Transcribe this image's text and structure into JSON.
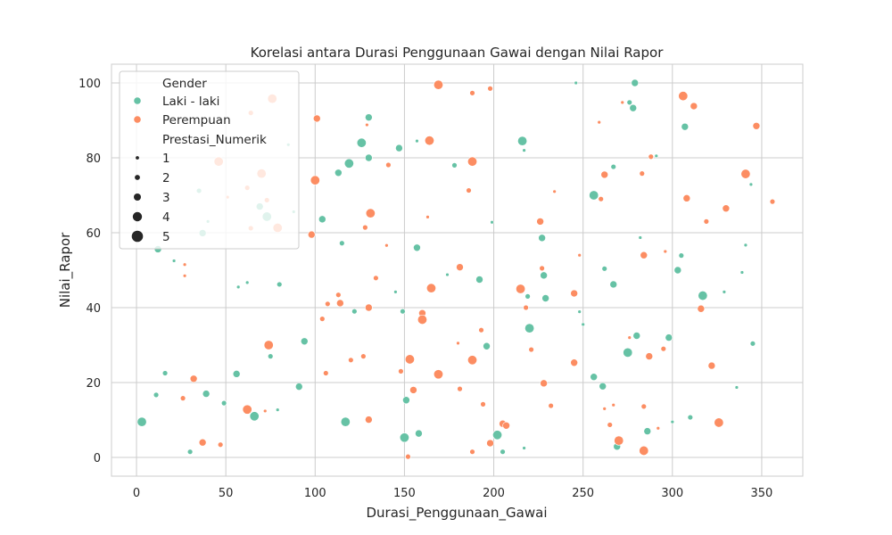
{
  "chart_data": {
    "type": "scatter",
    "title": "Korelasi antara Durasi Penggunaan Gawai dengan Nilai Rapor",
    "xlabel": "Durasi_Penggunaan_Gawai",
    "ylabel": "Nilai_Rapor",
    "xlim": [
      -14,
      373
    ],
    "ylim": [
      -5,
      105
    ],
    "xticks": [
      "0",
      "50",
      "100",
      "150",
      "200",
      "250",
      "300",
      "350"
    ],
    "yticks": [
      "0",
      "20",
      "40",
      "60",
      "80",
      "100"
    ],
    "grid": true,
    "legend_position": "top-left",
    "hue_title": "Gender",
    "size_title": "Prestasi_Numerik",
    "size_levels": [
      "1",
      "2",
      "3",
      "4",
      "5"
    ],
    "series": [
      {
        "name": "Laki - laki",
        "color": "#66c2a5",
        "points": [
          [
            3,
            9.5,
            4
          ],
          [
            11,
            16.7,
            2
          ],
          [
            12,
            55.6,
            3
          ],
          [
            16,
            22.5,
            2
          ],
          [
            21,
            52.5,
            1
          ],
          [
            30,
            1.5,
            2
          ],
          [
            35,
            71.2,
            2
          ],
          [
            37,
            59.9,
            3
          ],
          [
            39,
            17.0,
            3
          ],
          [
            40,
            63.0,
            1
          ],
          [
            49,
            14.5,
            2
          ],
          [
            56,
            22.3,
            3
          ],
          [
            57,
            45.5,
            1
          ],
          [
            62,
            46.7,
            1
          ],
          [
            66,
            11.0,
            4
          ],
          [
            69,
            67.0,
            3
          ],
          [
            73,
            64.3,
            4
          ],
          [
            75,
            27.0,
            2
          ],
          [
            79,
            12.7,
            1
          ],
          [
            80,
            46.2,
            2
          ],
          [
            85,
            83.5,
            1
          ],
          [
            88,
            65.6,
            1
          ],
          [
            91,
            18.9,
            3
          ],
          [
            94,
            31.0,
            3
          ],
          [
            104,
            63.6,
            3
          ],
          [
            113,
            76.0,
            3
          ],
          [
            115,
            57.2,
            2
          ],
          [
            117,
            9.5,
            4
          ],
          [
            119,
            78.5,
            4
          ],
          [
            122,
            39.0,
            2
          ],
          [
            126,
            84.0,
            4
          ],
          [
            130,
            80.0,
            3
          ],
          [
            130,
            90.8,
            3
          ],
          [
            145,
            44.2,
            1
          ],
          [
            147,
            82.6,
            3
          ],
          [
            149,
            39.0,
            2
          ],
          [
            150,
            5.3,
            4
          ],
          [
            151,
            15.3,
            3
          ],
          [
            157,
            84.5,
            1
          ],
          [
            157,
            56.0,
            3
          ],
          [
            158,
            6.4,
            3
          ],
          [
            174,
            48.8,
            1
          ],
          [
            178,
            78.0,
            2
          ],
          [
            192,
            47.5,
            3
          ],
          [
            196,
            29.7,
            3
          ],
          [
            199,
            62.8,
            1
          ],
          [
            202,
            6.0,
            4
          ],
          [
            205,
            1.5,
            2
          ],
          [
            216,
            84.5,
            4
          ],
          [
            217,
            2.5,
            1
          ],
          [
            217,
            82.0,
            1
          ],
          [
            219,
            43.0,
            2
          ],
          [
            220,
            34.5,
            4
          ],
          [
            227,
            58.6,
            3
          ],
          [
            228,
            48.6,
            3
          ],
          [
            229,
            42.5,
            3
          ],
          [
            246,
            100.0,
            1
          ],
          [
            248,
            38.9,
            1
          ],
          [
            250,
            35.5,
            1
          ],
          [
            256,
            70.0,
            4
          ],
          [
            256,
            21.5,
            3
          ],
          [
            261,
            19.0,
            3
          ],
          [
            262,
            50.4,
            2
          ],
          [
            267,
            77.6,
            2
          ],
          [
            267,
            46.2,
            3
          ],
          [
            269,
            2.9,
            3
          ],
          [
            275,
            28.0,
            4
          ],
          [
            276,
            94.8,
            2
          ],
          [
            278,
            93.3,
            3
          ],
          [
            279,
            100.0,
            3
          ],
          [
            280,
            32.5,
            3
          ],
          [
            282,
            58.7,
            1
          ],
          [
            286,
            7.0,
            3
          ],
          [
            291,
            80.5,
            1
          ],
          [
            298,
            32.0,
            3
          ],
          [
            300,
            9.5,
            1
          ],
          [
            303,
            50.0,
            3
          ],
          [
            305,
            53.9,
            2
          ],
          [
            307,
            88.3,
            3
          ],
          [
            310,
            10.7,
            2
          ],
          [
            317,
            43.2,
            4
          ],
          [
            329,
            44.2,
            1
          ],
          [
            336,
            18.7,
            1
          ],
          [
            339,
            49.4,
            1
          ],
          [
            341,
            56.7,
            1
          ],
          [
            344,
            72.9,
            1
          ],
          [
            345,
            30.4,
            2
          ]
        ]
      },
      {
        "name": "Perempuan",
        "color": "#fc8d62",
        "points": [
          [
            26,
            15.8,
            2
          ],
          [
            27,
            51.5,
            1
          ],
          [
            27,
            48.5,
            1
          ],
          [
            32,
            21.0,
            3
          ],
          [
            37,
            4.0,
            3
          ],
          [
            46,
            79.0,
            4
          ],
          [
            47,
            3.4,
            2
          ],
          [
            51,
            69.5,
            1
          ],
          [
            62,
            72.0,
            2
          ],
          [
            62,
            12.8,
            4
          ],
          [
            64,
            92.0,
            2
          ],
          [
            64,
            61.2,
            2
          ],
          [
            70,
            75.8,
            4
          ],
          [
            72,
            12.4,
            1
          ],
          [
            73,
            68.7,
            2
          ],
          [
            74,
            30.0,
            4
          ],
          [
            76,
            95.8,
            4
          ],
          [
            79,
            61.3,
            4
          ],
          [
            98,
            59.5,
            3
          ],
          [
            100,
            74.0,
            4
          ],
          [
            101,
            90.5,
            3
          ],
          [
            104,
            37.0,
            2
          ],
          [
            106,
            22.5,
            2
          ],
          [
            107,
            41.0,
            2
          ],
          [
            113,
            43.4,
            2
          ],
          [
            114,
            41.2,
            3
          ],
          [
            120,
            26.0,
            2
          ],
          [
            127,
            27.0,
            2
          ],
          [
            128,
            61.4,
            2
          ],
          [
            129,
            88.8,
            1
          ],
          [
            130,
            10.1,
            3
          ],
          [
            130,
            40.0,
            3
          ],
          [
            131,
            65.2,
            4
          ],
          [
            134,
            47.9,
            2
          ],
          [
            140,
            56.6,
            1
          ],
          [
            141,
            78.1,
            2
          ],
          [
            148,
            23.0,
            2
          ],
          [
            152,
            0.2,
            2
          ],
          [
            153,
            26.2,
            4
          ],
          [
            155,
            18.0,
            3
          ],
          [
            160,
            38.5,
            3
          ],
          [
            160,
            36.8,
            4
          ],
          [
            163,
            64.2,
            1
          ],
          [
            164,
            84.6,
            4
          ],
          [
            165,
            45.2,
            4
          ],
          [
            169,
            22.2,
            4
          ],
          [
            169,
            99.5,
            4
          ],
          [
            180,
            30.5,
            1
          ],
          [
            181,
            18.3,
            2
          ],
          [
            181,
            50.8,
            3
          ],
          [
            186,
            71.3,
            2
          ],
          [
            188,
            79.0,
            4
          ],
          [
            188,
            26.0,
            4
          ],
          [
            188,
            1.5,
            2
          ],
          [
            188,
            97.3,
            2
          ],
          [
            193,
            34.0,
            2
          ],
          [
            194,
            14.2,
            2
          ],
          [
            198,
            98.5,
            2
          ],
          [
            198,
            3.8,
            3
          ],
          [
            205,
            9.0,
            3
          ],
          [
            207,
            8.5,
            3
          ],
          [
            215,
            45.0,
            4
          ],
          [
            218,
            40.0,
            2
          ],
          [
            221,
            28.8,
            2
          ],
          [
            226,
            63.0,
            3
          ],
          [
            227,
            50.5,
            2
          ],
          [
            228,
            19.8,
            3
          ],
          [
            232,
            13.8,
            2
          ],
          [
            234,
            71.0,
            1
          ],
          [
            245,
            25.3,
            3
          ],
          [
            245,
            43.8,
            3
          ],
          [
            248,
            54.0,
            1
          ],
          [
            259,
            89.5,
            1
          ],
          [
            260,
            69.0,
            2
          ],
          [
            262,
            75.5,
            3
          ],
          [
            262,
            13.0,
            1
          ],
          [
            265,
            8.7,
            2
          ],
          [
            267,
            14.0,
            1
          ],
          [
            270,
            4.5,
            4
          ],
          [
            272,
            94.8,
            1
          ],
          [
            276,
            32.0,
            1
          ],
          [
            283,
            75.8,
            2
          ],
          [
            284,
            1.8,
            4
          ],
          [
            284,
            13.6,
            2
          ],
          [
            284,
            54.0,
            3
          ],
          [
            287,
            27.0,
            3
          ],
          [
            288,
            80.3,
            2
          ],
          [
            292,
            7.8,
            1
          ],
          [
            295,
            29.0,
            2
          ],
          [
            296,
            55.0,
            1
          ],
          [
            306,
            96.5,
            4
          ],
          [
            308,
            69.2,
            3
          ],
          [
            312,
            93.8,
            3
          ],
          [
            316,
            39.7,
            3
          ],
          [
            319,
            63.0,
            2
          ],
          [
            322,
            24.5,
            3
          ],
          [
            326,
            9.3,
            4
          ],
          [
            330,
            66.5,
            3
          ],
          [
            341,
            75.7,
            4
          ],
          [
            347,
            88.5,
            3
          ],
          [
            356,
            68.3,
            2
          ]
        ]
      }
    ]
  }
}
